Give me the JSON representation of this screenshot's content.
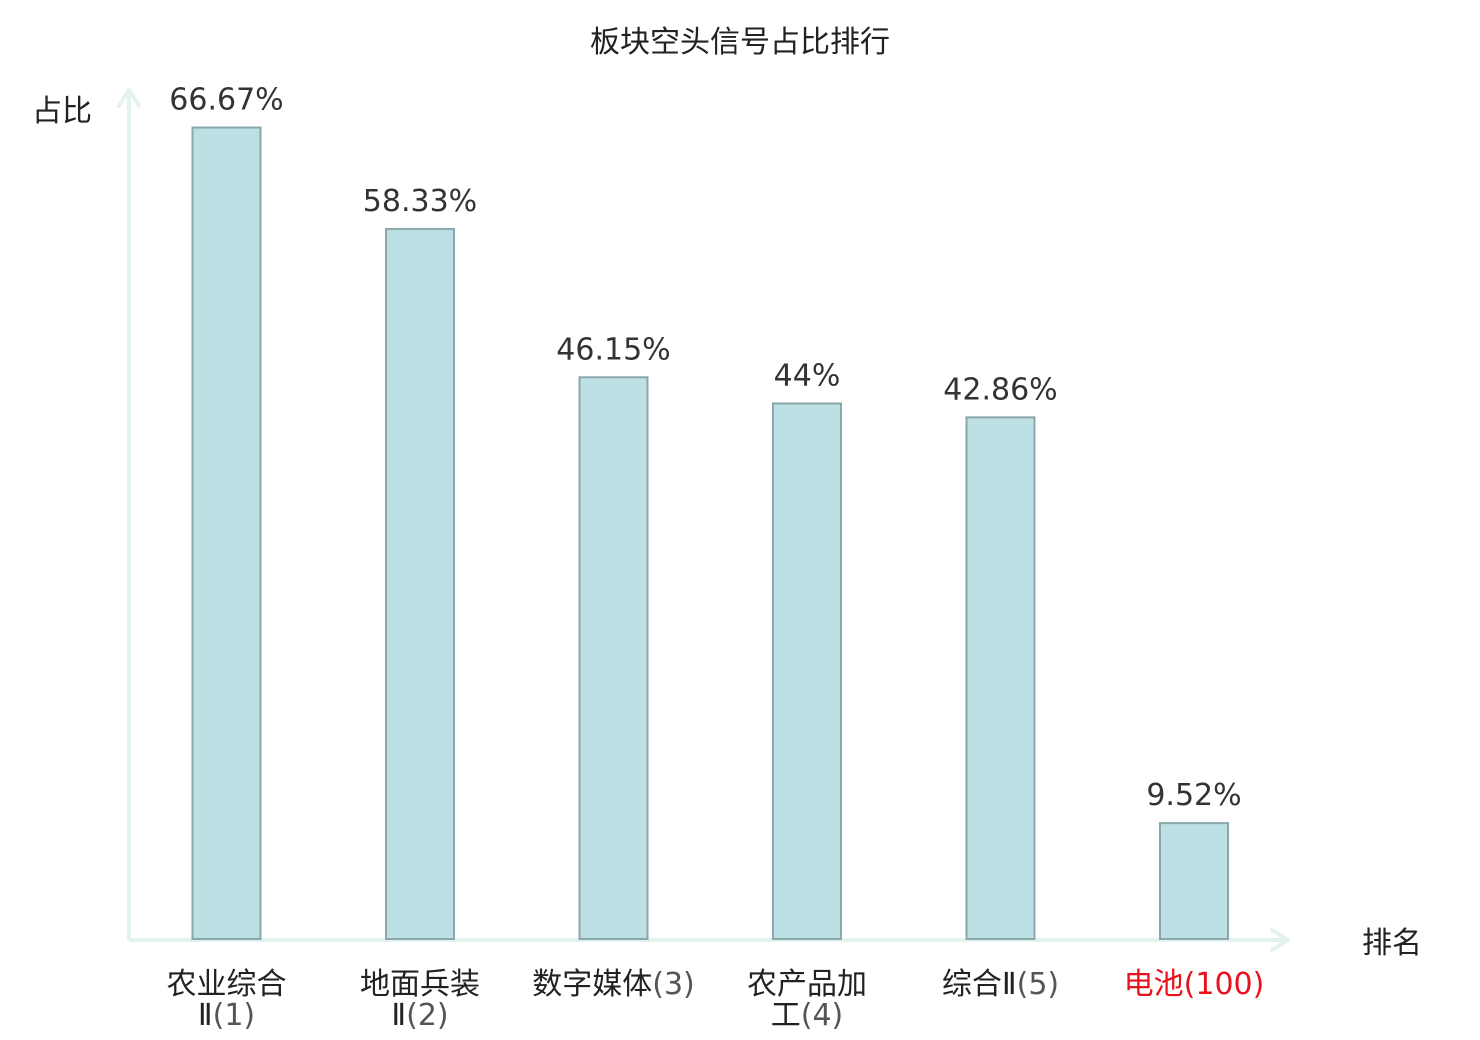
{
  "chart_data": {
    "type": "bar",
    "title": "板块空头信号占比排行",
    "ylabel": "占比",
    "xlabel": "排名",
    "ylim": [
      0,
      70
    ],
    "grid": false,
    "legend": "none",
    "categories": [
      {
        "line1": "农业综合",
        "name_tail": "Ⅱ",
        "rank": "(1)"
      },
      {
        "line1": "地面兵装",
        "name_tail": "Ⅱ",
        "rank": "(2)"
      },
      {
        "line1": "数字媒体",
        "name_tail": "",
        "rank": "(3)"
      },
      {
        "line1": "农产品加",
        "name_tail": "工",
        "rank": "(4)"
      },
      {
        "line1": "综合Ⅱ",
        "name_tail": "",
        "rank": "(5)"
      },
      {
        "line1": "电池",
        "name_tail": "",
        "rank": "(100)"
      }
    ],
    "values": [
      66.67,
      58.33,
      46.15,
      44,
      42.86,
      9.52
    ],
    "value_labels": [
      "66.67%",
      "58.33%",
      "46.15%",
      "44%",
      "42.86%",
      "9.52%"
    ],
    "highlight_index": 5,
    "colors": {
      "bar_fill": "#bce0e3",
      "bar_stroke": "#8aa7a9",
      "axis": "#e3f3f1",
      "highlight_text": "#e8121c"
    }
  }
}
